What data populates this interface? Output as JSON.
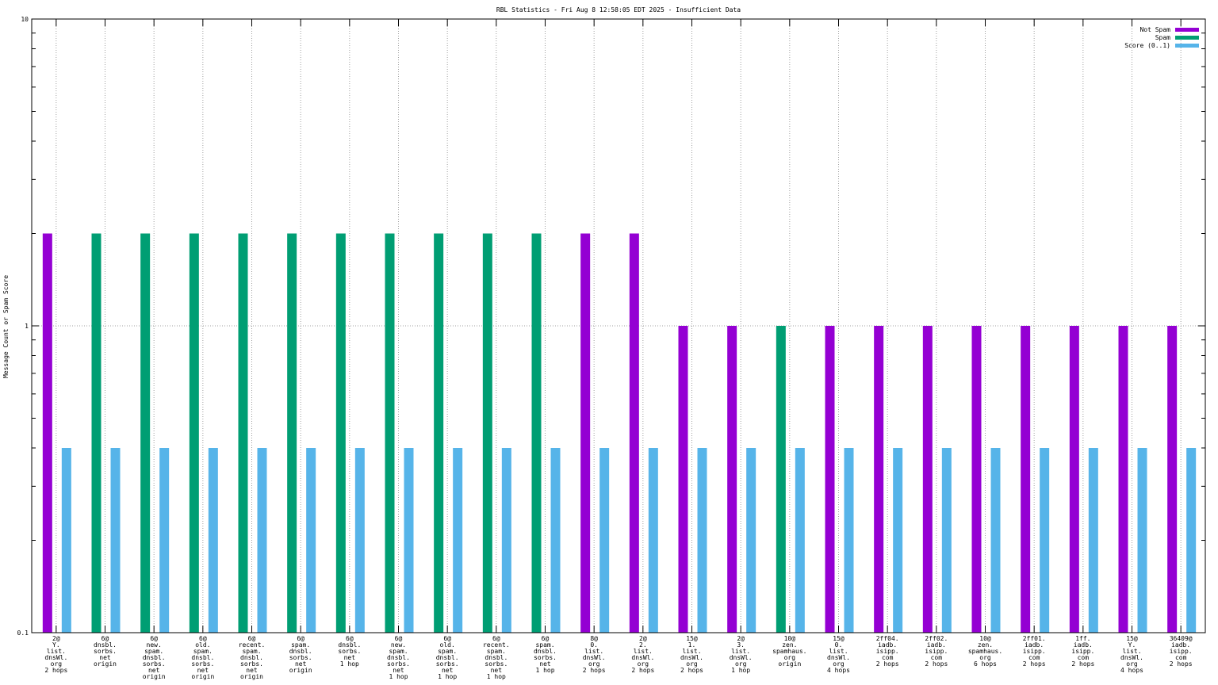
{
  "chart_data": {
    "type": "bar",
    "title": "RBL Statistics - Fri Aug  8 12:58:05 EDT 2025 - Insufficient Data",
    "xlabel": "",
    "ylabel": "Message Count or Spam Score",
    "yscale": "log",
    "ylim": [
      0.1,
      10
    ],
    "yticks": [
      "10",
      "1",
      "0.1"
    ],
    "grid": true,
    "legend_position": "top-right",
    "categories": [
      [
        "2@",
        "Y.",
        "list.",
        "dnsWl.",
        "org",
        "2 hops"
      ],
      [
        "6@",
        "dnsbl.",
        "sorbs.",
        "net",
        "origin"
      ],
      [
        "6@",
        "new.",
        "spam.",
        "dnsbl.",
        "sorbs.",
        "net",
        "origin"
      ],
      [
        "6@",
        "old.",
        "spam.",
        "dnsbl.",
        "sorbs.",
        "net",
        "origin"
      ],
      [
        "6@",
        "recent.",
        "spam.",
        "dnsbl.",
        "sorbs.",
        "net",
        "origin"
      ],
      [
        "6@",
        "spam.",
        "dnsbl.",
        "sorbs.",
        "net",
        "origin"
      ],
      [
        "6@",
        "dnsbl.",
        "sorbs.",
        "net",
        "1 hop"
      ],
      [
        "6@",
        "new.",
        "spam.",
        "dnsbl.",
        "sorbs.",
        "net",
        "1 hop"
      ],
      [
        "6@",
        "old.",
        "spam.",
        "dnsbl.",
        "sorbs.",
        "net",
        "1 hop"
      ],
      [
        "6@",
        "recent.",
        "spam.",
        "dnsbl.",
        "sorbs.",
        "net",
        "1 hop"
      ],
      [
        "6@",
        "spam.",
        "dnsbl.",
        "sorbs.",
        "net",
        "1 hop"
      ],
      [
        "8@",
        "0.",
        "list.",
        "dnsWl.",
        "org",
        "2 hops"
      ],
      [
        "2@",
        "2.",
        "list.",
        "dnsWl.",
        "org",
        "2 hops"
      ],
      [
        "15@",
        "1.",
        "list.",
        "dnsWl.",
        "org",
        "2 hops"
      ],
      [
        "2@",
        "3.",
        "list.",
        "dnsWl.",
        "org",
        "1 hop"
      ],
      [
        "10@",
        "zen.",
        "spamhaus.",
        "org",
        "origin"
      ],
      [
        "15@",
        "0.",
        "list.",
        "dnsWl.",
        "org",
        "4 hops"
      ],
      [
        "2ff04.",
        "iadb.",
        "isipp.",
        "com",
        "2 hops"
      ],
      [
        "2ff02.",
        "iadb.",
        "isipp.",
        "com",
        "2 hops"
      ],
      [
        "10@",
        "zen.",
        "spamhaus.",
        "org",
        "6 hops"
      ],
      [
        "2ff01.",
        "iadb.",
        "isipp.",
        "com",
        "2 hops"
      ],
      [
        "1ff.",
        "iadb.",
        "isipp.",
        "com",
        "2 hops"
      ],
      [
        "15@",
        "Y.",
        "list.",
        "dnsWl.",
        "org",
        "4 hops"
      ],
      [
        "36409@",
        "iadb.",
        "isipp.",
        "com",
        "2 hops"
      ]
    ],
    "series": [
      {
        "name": "Not Spam",
        "color": "#9400d3",
        "values": [
          2,
          0,
          0,
          0,
          0,
          0,
          0,
          0,
          0,
          0,
          0,
          2,
          2,
          1,
          1,
          0,
          1,
          1,
          1,
          1,
          1,
          1,
          1,
          1
        ]
      },
      {
        "name": "Spam",
        "color": "#009e73",
        "values": [
          0,
          2,
          2,
          2,
          2,
          2,
          2,
          2,
          2,
          2,
          2,
          0,
          0,
          0,
          0,
          1,
          0,
          0,
          0,
          0,
          0,
          0,
          0,
          0
        ]
      },
      {
        "name": "Score (0..1)",
        "color": "#56b4e9",
        "values": [
          0.4,
          0.4,
          0.4,
          0.4,
          0.4,
          0.4,
          0.4,
          0.4,
          0.4,
          0.4,
          0.4,
          0.4,
          0.4,
          0.4,
          0.4,
          0.4,
          0.4,
          0.4,
          0.4,
          0.4,
          0.4,
          0.4,
          0.4,
          0.4
        ]
      }
    ]
  }
}
